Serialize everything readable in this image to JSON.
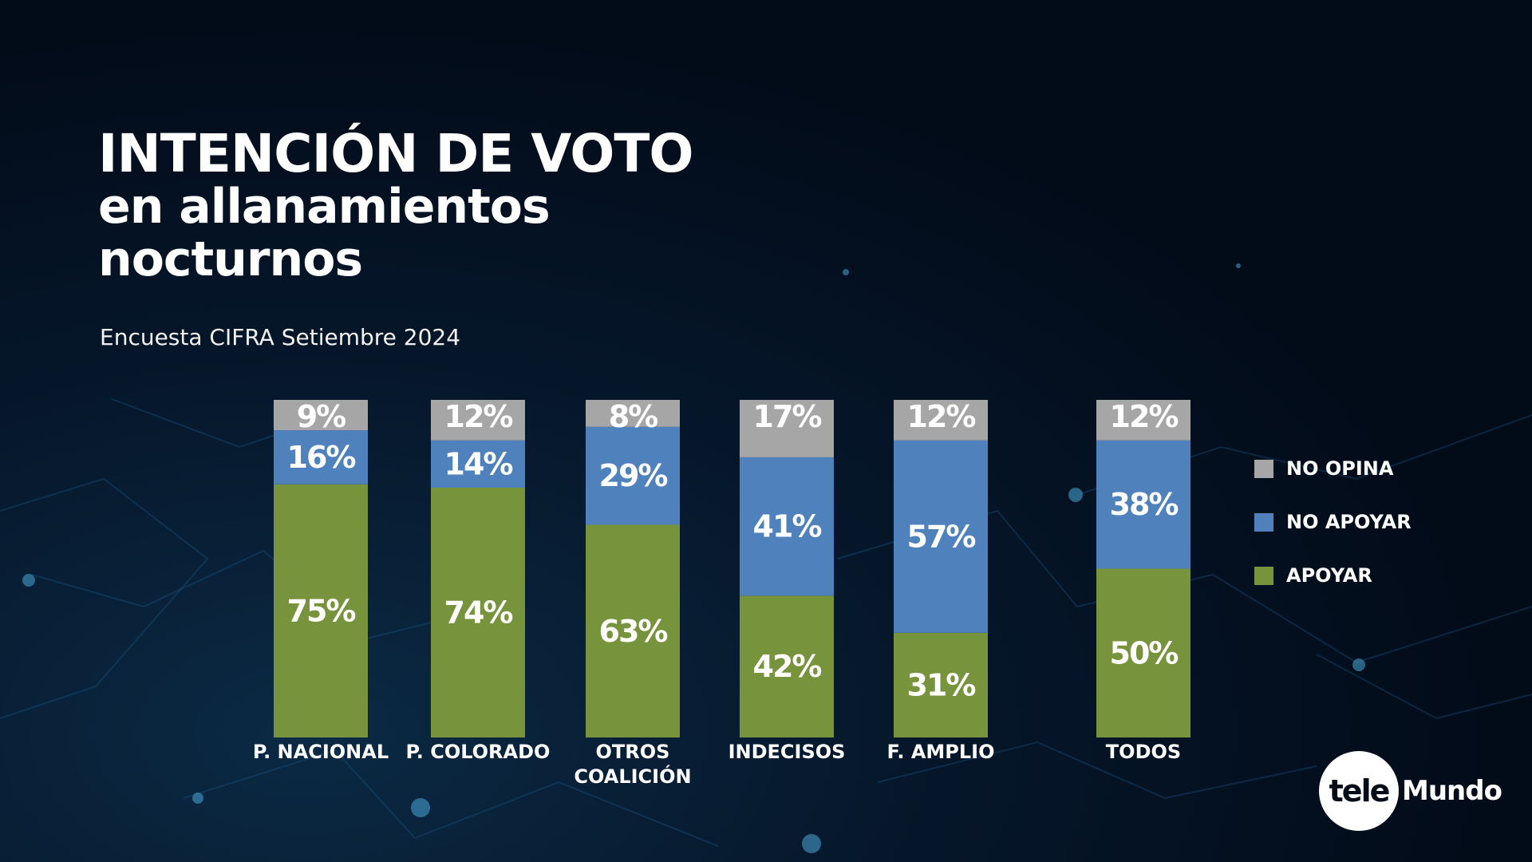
{
  "header": {
    "title_line1": "INTENCIÓN DE VOTO",
    "title_line2": "en allanamientos",
    "title_line3": "nocturnos",
    "subtitle": "Encuesta CIFRA Setiembre 2024"
  },
  "logo": {
    "circle_text": "tele",
    "word": "Mundo"
  },
  "colors": {
    "no_opina": "#a6a6a6",
    "no_apoyar": "#4f81bd",
    "apoyar": "#77933c",
    "background": "#020b18"
  },
  "chart_data": {
    "type": "bar",
    "stacked": true,
    "title": "INTENCIÓN DE VOTO en allanamientos nocturnos",
    "subtitle": "Encuesta CIFRA Setiembre 2024",
    "xlabel": "",
    "ylabel": "",
    "ylim": [
      0,
      100
    ],
    "grid": false,
    "legend_position": "right",
    "categories": [
      [
        "P. NACIONAL"
      ],
      [
        "P. COLORADO"
      ],
      [
        "OTROS",
        "COALICIÓN"
      ],
      [
        "INDECISOS"
      ],
      [
        "F. AMPLIO"
      ],
      [
        "TODOS"
      ]
    ],
    "category_names": [
      "P. NACIONAL",
      "P. COLORADO",
      "OTROS COALICIÓN",
      "INDECISOS",
      "F. AMPLIO",
      "TODOS"
    ],
    "series": [
      {
        "name": "APOYAR",
        "color": "#77933c",
        "values": [
          75,
          74,
          63,
          42,
          31,
          50
        ]
      },
      {
        "name": "NO APOYAR",
        "color": "#4f81bd",
        "values": [
          16,
          14,
          29,
          41,
          57,
          38
        ]
      },
      {
        "name": "NO OPINA",
        "color": "#a6a6a6",
        "values": [
          9,
          12,
          8,
          17,
          12,
          12
        ]
      }
    ],
    "legend": [
      {
        "name": "NO OPINA",
        "color": "#a6a6a6"
      },
      {
        "name": "NO APOYAR",
        "color": "#4f81bd"
      },
      {
        "name": "APOYAR",
        "color": "#77933c"
      }
    ]
  }
}
